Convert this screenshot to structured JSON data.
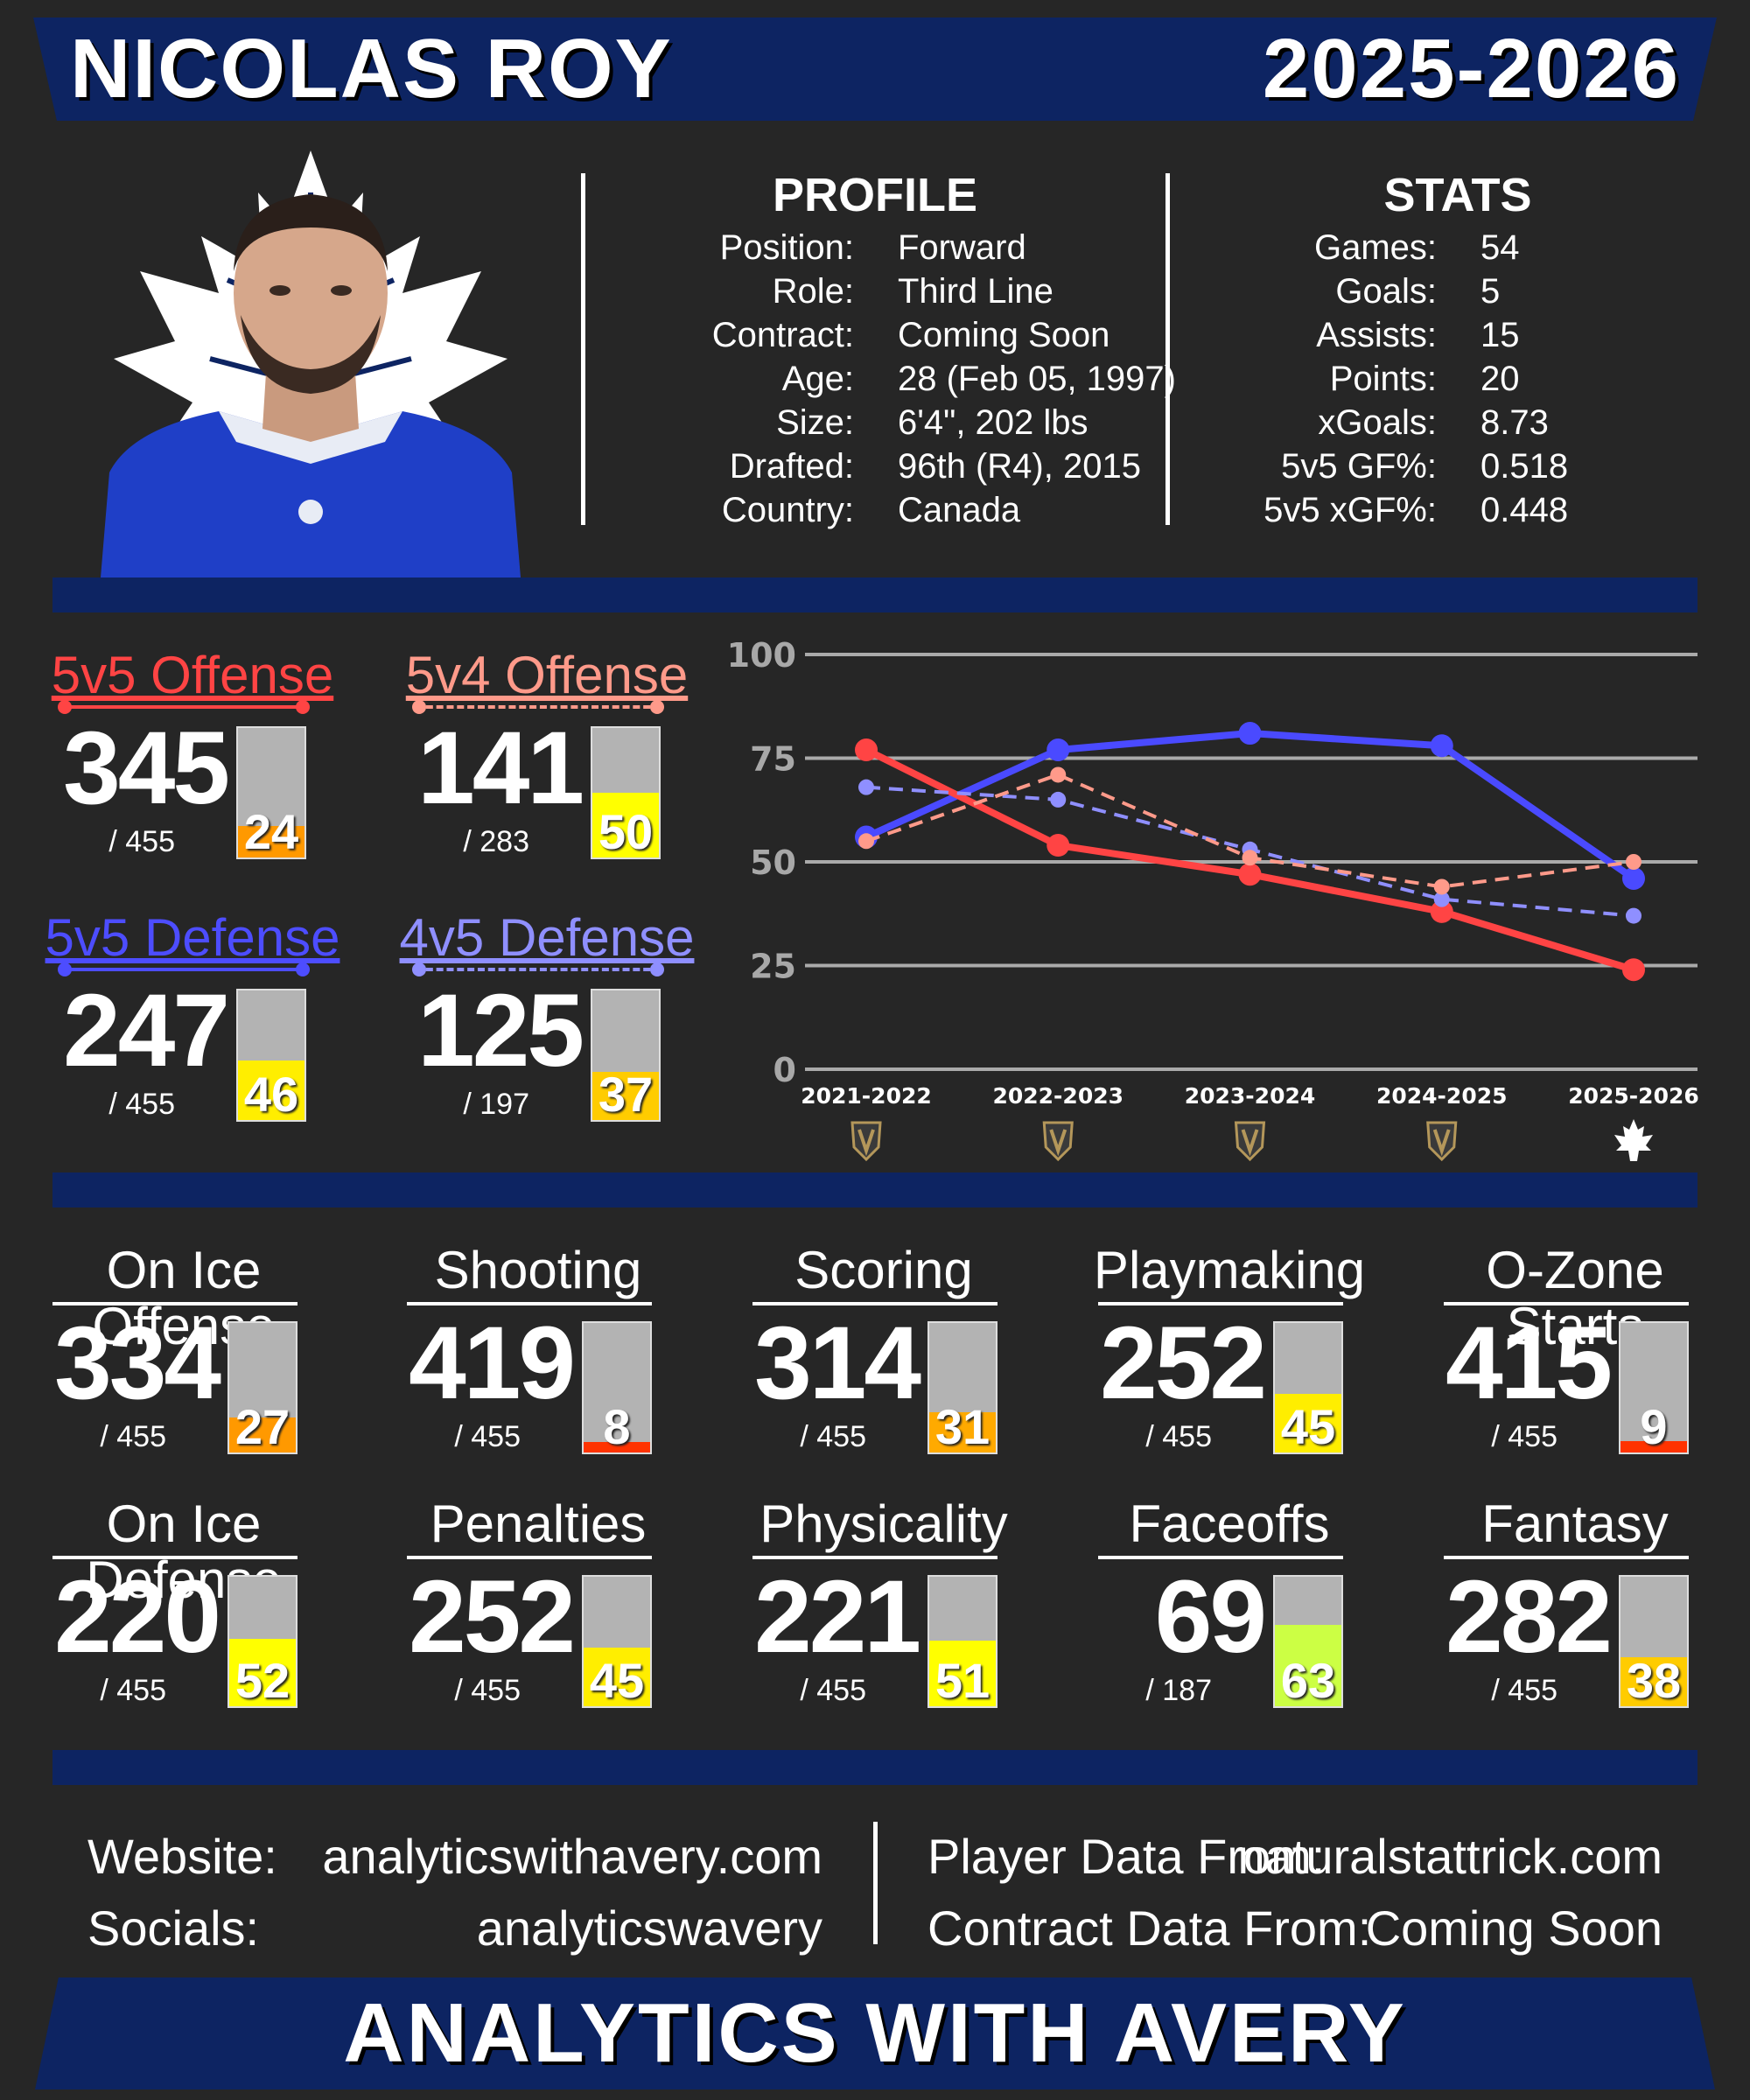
{
  "header": {
    "player_name": "NICOLAS ROY",
    "season": "2025-2026"
  },
  "profile": {
    "title": "PROFILE",
    "rows": [
      {
        "label": "Position:",
        "value": "Forward"
      },
      {
        "label": "Role:",
        "value": "Third Line"
      },
      {
        "label": "Contract:",
        "value": "Coming Soon"
      },
      {
        "label": "Age:",
        "value": "28 (Feb 05, 1997)"
      },
      {
        "label": "Size:",
        "value": "6'4\", 202 lbs"
      },
      {
        "label": "Drafted:",
        "value": "96th (R4), 2015"
      },
      {
        "label": "Country:",
        "value": "Canada"
      }
    ]
  },
  "stats": {
    "title": "STATS",
    "rows": [
      {
        "label": "Games:",
        "value": "54"
      },
      {
        "label": "Goals:",
        "value": "5"
      },
      {
        "label": "Assists:",
        "value": "15"
      },
      {
        "label": "Points:",
        "value": "20"
      },
      {
        "label": "xGoals:",
        "value": "8.73"
      },
      {
        "label": "5v5 GF%:",
        "value": "0.518"
      },
      {
        "label": "5v5 xGF%:",
        "value": "0.448"
      }
    ]
  },
  "situational": [
    {
      "title": "5v5 Offense",
      "rank": "345",
      "total": "/ 455",
      "percentile": "24",
      "pct": 24,
      "color": "#ff4444",
      "dashed": false,
      "fill": "#ff9900"
    },
    {
      "title": "5v4 Offense",
      "rank": "141",
      "total": "/ 283",
      "percentile": "50",
      "pct": 50,
      "color": "#ff9a8a",
      "dashed": true,
      "fill": "#ffff00"
    },
    {
      "title": "5v5 Defense",
      "rank": "247",
      "total": "/ 455",
      "percentile": "46",
      "pct": 46,
      "color": "#4d4dff",
      "dashed": false,
      "fill": "#ffee00"
    },
    {
      "title": "4v5 Defense",
      "rank": "125",
      "total": "/ 197",
      "percentile": "37",
      "pct": 37,
      "color": "#8f8fff",
      "dashed": true,
      "fill": "#ffcc00"
    }
  ],
  "chart_data": {
    "type": "line",
    "categories": [
      "2021-2022",
      "2022-2023",
      "2023-2024",
      "2024-2025",
      "2025-2026"
    ],
    "ylim": [
      0,
      100
    ],
    "yticks": [
      "0",
      "25",
      "50",
      "75",
      "100"
    ],
    "grid": true,
    "team_icons": [
      "vegas-icon",
      "vegas-icon",
      "vegas-icon",
      "vegas-icon",
      "maple-leaf-icon"
    ],
    "series": [
      {
        "values": [
          56,
          77,
          81,
          78,
          46
        ],
        "color": "#4a4aff",
        "dashed": false
      },
      {
        "values": [
          77,
          54,
          47,
          38,
          24
        ],
        "color": "#ff4444",
        "dashed": false
      },
      {
        "values": [
          68,
          65,
          53,
          41,
          37
        ],
        "color": "#8f8fff",
        "dashed": true
      },
      {
        "values": [
          55,
          71,
          51,
          44,
          50
        ],
        "color": "#ff9a8a",
        "dashed": true
      }
    ]
  },
  "categories": [
    {
      "title": "On Ice Offense",
      "rank": "334",
      "total": "/ 455",
      "percentile": "27",
      "pct": 27,
      "fill": "#ff9900"
    },
    {
      "title": "Shooting",
      "rank": "419",
      "total": "/ 455",
      "percentile": "8",
      "pct": 8,
      "fill": "#ff3300"
    },
    {
      "title": "Scoring",
      "rank": "314",
      "total": "/ 455",
      "percentile": "31",
      "pct": 31,
      "fill": "#ffaa00"
    },
    {
      "title": "Playmaking",
      "rank": "252",
      "total": "/ 455",
      "percentile": "45",
      "pct": 45,
      "fill": "#ffee00"
    },
    {
      "title": "O-Zone Starts",
      "rank": "415",
      "total": "/ 455",
      "percentile": "9",
      "pct": 9,
      "fill": "#ff3300"
    },
    {
      "title": "On Ice Defense",
      "rank": "220",
      "total": "/ 455",
      "percentile": "52",
      "pct": 52,
      "fill": "#ffff00"
    },
    {
      "title": "Penalties",
      "rank": "252",
      "total": "/ 455",
      "percentile": "45",
      "pct": 45,
      "fill": "#ffee00"
    },
    {
      "title": "Physicality",
      "rank": "221",
      "total": "/ 455",
      "percentile": "51",
      "pct": 51,
      "fill": "#ffff00"
    },
    {
      "title": "Faceoffs",
      "rank": "69",
      "total": "/ 187",
      "percentile": "63",
      "pct": 63,
      "fill": "#ccff44"
    },
    {
      "title": "Fantasy",
      "rank": "282",
      "total": "/ 455",
      "percentile": "38",
      "pct": 38,
      "fill": "#ffcc00"
    }
  ],
  "footer": {
    "website_label": "Website:",
    "website_value": "analyticswithavery.com",
    "socials_label": "Socials:",
    "socials_value": "analyticswavery",
    "player_data_label": "Player Data From:",
    "player_data_value": "naturalstattrick.com",
    "contract_data_label": "Contract Data From:",
    "contract_data_value": "Coming Soon"
  },
  "banner": {
    "text": "ANALYTICS WITH AVERY"
  },
  "colors": {
    "navy": "#0d2462",
    "background": "#262626"
  }
}
